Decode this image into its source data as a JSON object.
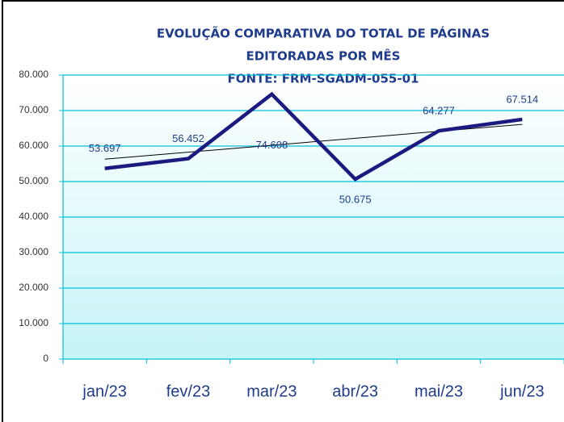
{
  "chart_data": {
    "type": "line",
    "title": [
      "EVOLUÇÃO COMPARATIVA  DO TOTAL DE PÁGINAS",
      "EDITORADAS POR MÊS",
      "FONTE: FRM-SGADM-055-01"
    ],
    "categories": [
      "jan/23",
      "fev/23",
      "mar/23",
      "abr/23",
      "mai/23",
      "jun/23"
    ],
    "series": [
      {
        "name": "Total de páginas",
        "color": "#1a1a80",
        "values": [
          53697,
          56452,
          74608,
          50675,
          64277,
          67514
        ],
        "value_labels": [
          "53.697",
          "56.452",
          "74.608",
          "50.675",
          "64.277",
          "67.514"
        ]
      }
    ],
    "trendline": "linear",
    "trendline_color": "#000000",
    "ylim": [
      0,
      80000
    ],
    "yticks": [
      0,
      {
        "value": 10000,
        "label": "10.000"
      },
      {
        "value": 20000,
        "label": "20.000"
      },
      {
        "value": 30000,
        "label": "30.000"
      },
      {
        "value": 40000,
        "label": "40.000"
      },
      {
        "value": 50000,
        "label": "50.000"
      },
      {
        "value": 60000,
        "label": "60.000"
      },
      {
        "value": 70000,
        "label": "70.000"
      },
      {
        "value": 80000,
        "label": "80.000"
      }
    ],
    "grid": true
  }
}
